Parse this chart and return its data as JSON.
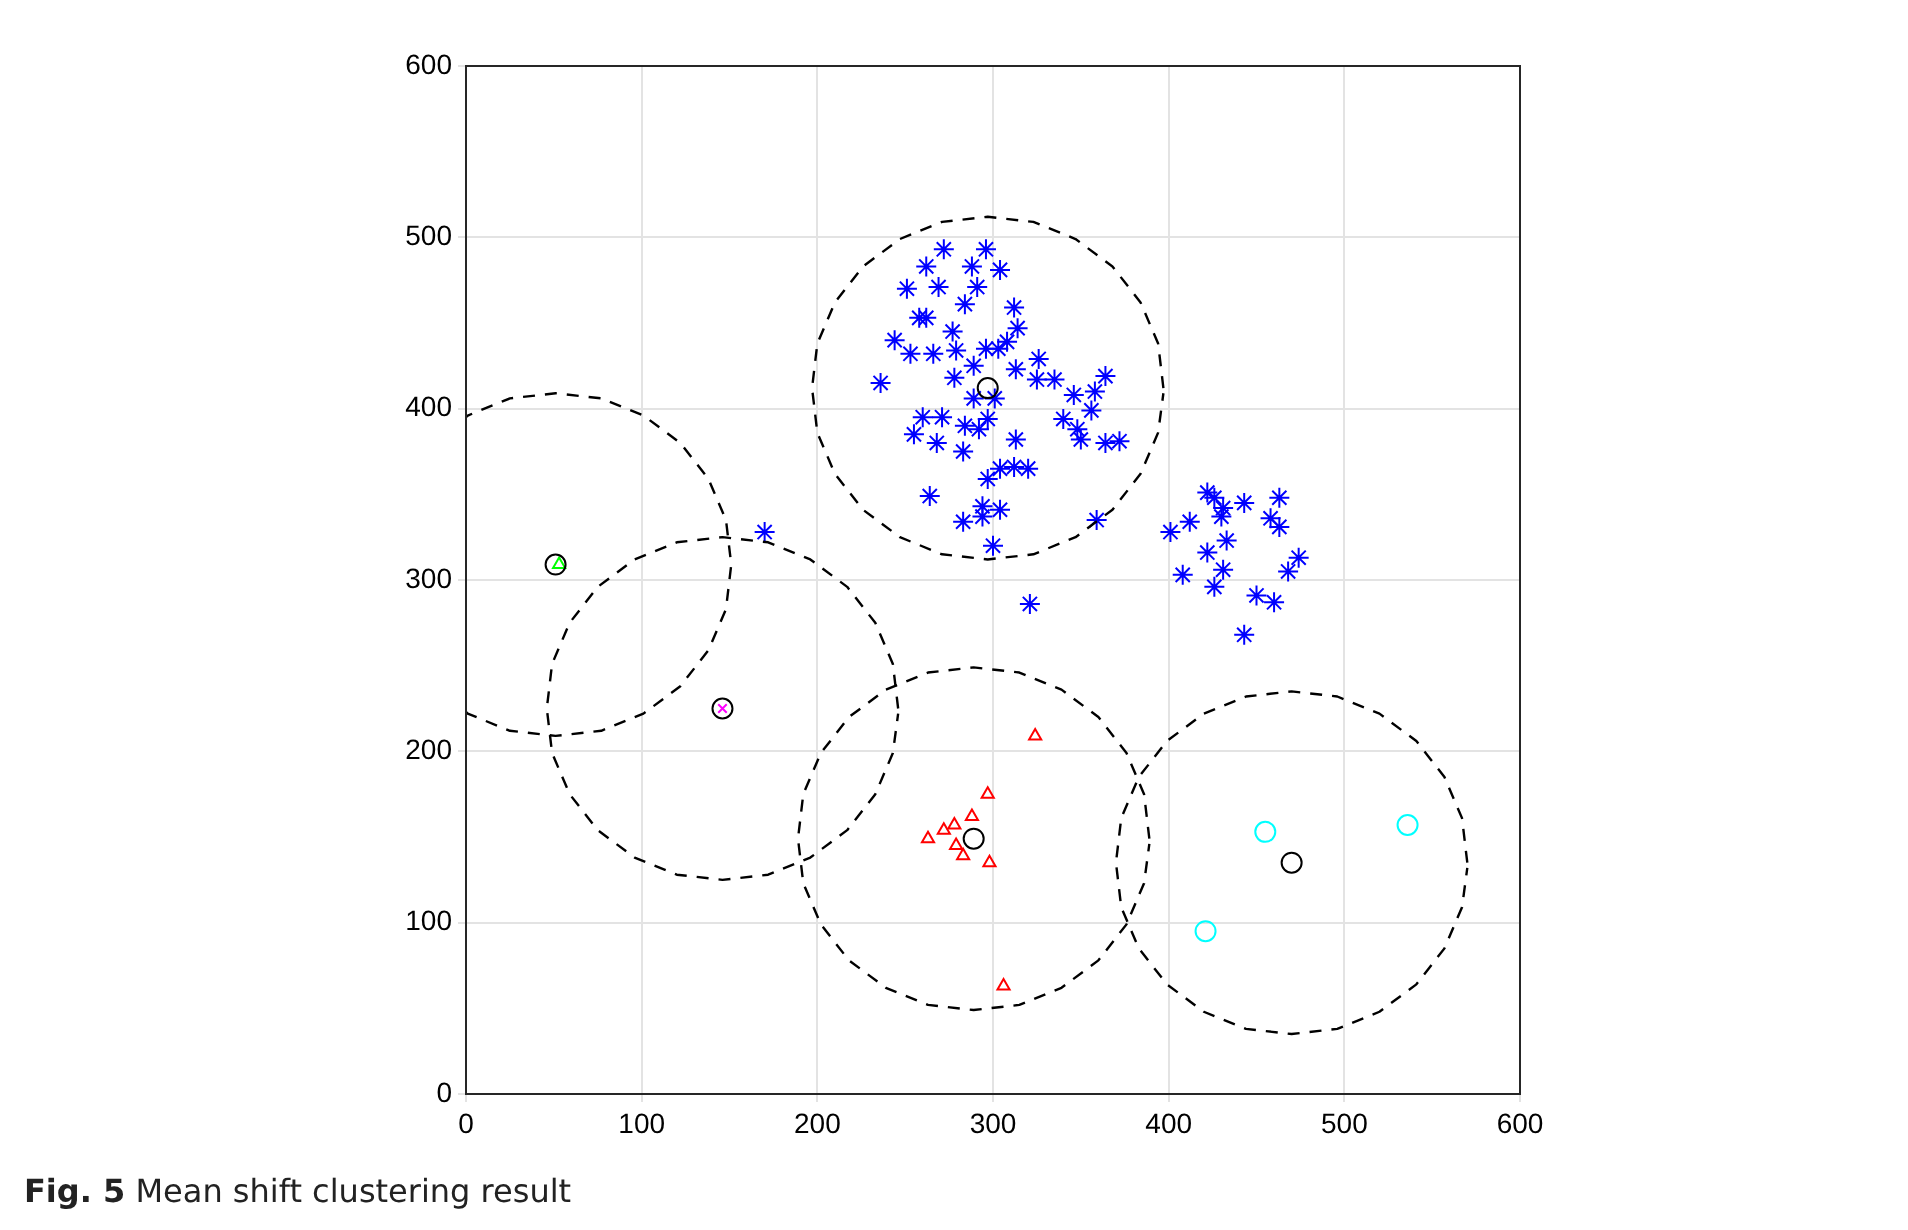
{
  "chart_data": {
    "type": "scatter",
    "xlim": [
      0,
      600
    ],
    "ylim": [
      0,
      600
    ],
    "xticks": [
      0,
      100,
      200,
      300,
      400,
      500,
      600
    ],
    "yticks": [
      0,
      100,
      200,
      300,
      400,
      500,
      600
    ],
    "grid": true,
    "annotations": [
      "Fig. 5 Mean shift clustering result"
    ],
    "series": [
      {
        "type": "scatter",
        "color": "#0000ff",
        "x": [
          272,
          296,
          262,
          288,
          304,
          269,
          251,
          291,
          284,
          312,
          258,
          262,
          277,
          314,
          244,
          253,
          266,
          279,
          296,
          303,
          308,
          326,
          289,
          313,
          278,
          236,
          325,
          335,
          364,
          346,
          358,
          289,
          301,
          356,
          260,
          271,
          297,
          340,
          284,
          292,
          255,
          348,
          350,
          268,
          313,
          364,
          372,
          283,
          304,
          312,
          320,
          297,
          264,
          294,
          304,
          283,
          294,
          359,
          300,
          321,
          401,
          412,
          408,
          422,
          426,
          431,
          430,
          443,
          463,
          458,
          463,
          433,
          422,
          431,
          426,
          474,
          468,
          450,
          460,
          443,
          170
        ],
        "values": [
          493,
          493,
          483,
          483,
          481,
          471,
          470,
          471,
          461,
          459,
          453,
          453,
          445,
          447,
          440,
          432,
          432,
          434,
          435,
          435,
          439,
          429,
          425,
          423,
          418,
          415,
          417,
          417,
          419,
          408,
          410,
          406,
          406,
          399,
          395,
          395,
          394,
          394,
          390,
          388,
          385,
          388,
          382,
          380,
          382,
          380,
          381,
          375,
          365,
          366,
          365,
          359,
          349,
          343,
          341,
          334,
          337,
          335,
          320,
          286,
          328,
          334,
          303,
          351,
          348,
          342,
          337,
          345,
          348,
          336,
          331,
          323,
          316,
          306,
          296,
          313,
          305,
          291,
          287,
          268,
          328
        ]
      },
      {
        "type": "scatter",
        "marker": "triangle",
        "color": "#00ff00",
        "x": [
          53
        ],
        "values": [
          309
        ]
      },
      {
        "type": "scatter",
        "marker": "cross",
        "color": "#ff00ff",
        "x": [
          146
        ],
        "values": [
          225
        ]
      },
      {
        "type": "scatter",
        "marker": "triangle",
        "color": "#ff0000",
        "x": [
          324,
          297,
          288,
          278,
          272,
          263,
          279,
          283,
          298,
          306
        ],
        "values": [
          209,
          175,
          162,
          157,
          154,
          149,
          145,
          139,
          135,
          63
        ]
      },
      {
        "type": "scatter",
        "marker": "circle",
        "color": "#00ffff",
        "x": [
          455,
          536,
          421
        ],
        "values": [
          153,
          157,
          95
        ]
      },
      {
        "type": "scatter",
        "marker": "circle",
        "color": "#000000",
        "x": [
          51,
          146,
          297,
          289,
          470
        ],
        "values": [
          309,
          225,
          412,
          149,
          135
        ]
      },
      {
        "type": "line",
        "marker": "none",
        "line_style": "dashed",
        "color": "#000000",
        "x": [
          0,
          1,
          25,
          51,
          77,
          101,
          122,
          138,
          148,
          151,
          148,
          138,
          122,
          101,
          77,
          51,
          25,
          1,
          0
        ],
        "values": [
          223,
          222,
          212,
          209,
          212,
          222,
          238,
          259,
          283,
          309,
          335,
          359,
          380,
          396,
          406,
          409,
          406,
          396,
          395
        ]
      },
      {
        "type": "line",
        "marker": "none",
        "line_style": "dashed",
        "color": "#000000",
        "x": [
          246,
          243,
          233,
          217,
          196,
          172,
          146,
          120,
          96,
          75,
          59,
          49,
          46,
          49,
          59,
          75,
          96,
          120,
          146,
          172,
          196,
          217,
          233,
          243,
          246
        ],
        "values": [
          225,
          251,
          275,
          296,
          312,
          322,
          325,
          322,
          312,
          296,
          275,
          251,
          225,
          199,
          175,
          154,
          138,
          128,
          125,
          128,
          138,
          154,
          175,
          199,
          222
        ]
      },
      {
        "type": "line",
        "marker": "none",
        "line_style": "dashed",
        "color": "#000000",
        "x": [
          397,
          394,
          384,
          368,
          347,
          323,
          297,
          271,
          247,
          226,
          210,
          200,
          197,
          200,
          210,
          226,
          247,
          271,
          297,
          323,
          347,
          368,
          384,
          394,
          397
        ],
        "values": [
          412,
          438,
          462,
          483,
          499,
          509,
          512,
          509,
          499,
          483,
          462,
          438,
          412,
          386,
          362,
          341,
          325,
          315,
          312,
          315,
          325,
          341,
          362,
          386,
          409
        ]
      },
      {
        "type": "line",
        "marker": "none",
        "line_style": "dashed",
        "color": "#000000",
        "x": [
          389,
          386,
          376,
          360,
          339,
          315,
          289,
          263,
          239,
          218,
          202,
          192,
          189,
          192,
          202,
          218,
          239,
          263,
          289,
          315,
          339,
          360,
          376,
          386,
          389
        ],
        "values": [
          149,
          175,
          199,
          220,
          236,
          246,
          249,
          246,
          236,
          220,
          199,
          175,
          149,
          123,
          99,
          78,
          62,
          52,
          49,
          52,
          62,
          78,
          99,
          123,
          146
        ]
      },
      {
        "type": "line",
        "marker": "none",
        "line_style": "dashed",
        "color": "#000000",
        "x": [
          570,
          567,
          557,
          541,
          520,
          496,
          470,
          444,
          420,
          399,
          383,
          373,
          370,
          373,
          383,
          399,
          420,
          444,
          470,
          496,
          520,
          541,
          557,
          567,
          570
        ],
        "values": [
          135,
          161,
          185,
          206,
          222,
          232,
          235,
          232,
          222,
          206,
          185,
          161,
          135,
          109,
          85,
          64,
          48,
          38,
          35,
          38,
          48,
          64,
          85,
          109,
          132
        ]
      }
    ]
  }
}
